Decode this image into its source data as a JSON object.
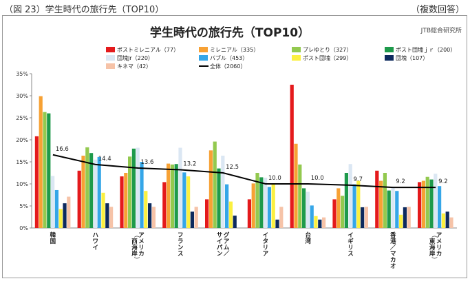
{
  "header": {
    "caption": "（図 23）学生時代の旅行先（TOP10）",
    "note": "（複数回答）"
  },
  "chart_data": {
    "type": "bar",
    "title": "学生時代の旅行先（TOP10）",
    "source": "JTB総合研究所",
    "xlabel": "",
    "ylabel": "",
    "ylim": [
      0,
      35
    ],
    "yticks": [
      "0%",
      "5%",
      "10%",
      "15%",
      "20%",
      "25%",
      "30%",
      "35%"
    ],
    "grid": false,
    "legend_position": "top",
    "categories": [
      [
        "韓国"
      ],
      [
        "ハワイ"
      ],
      [
        "アメリカ",
        "（西海岸）"
      ],
      [
        "フランス"
      ],
      [
        "グアム／",
        "サイパン"
      ],
      [
        "イタリア"
      ],
      [
        "台湾"
      ],
      [
        "イギリス"
      ],
      [
        "香港／マカオ"
      ],
      [
        "アメリカ",
        "（東海岸）"
      ]
    ],
    "series": [
      {
        "name": "ポストミレニアル（77）",
        "color": "#e41a1c",
        "values": [
          20.8,
          13.0,
          11.7,
          10.4,
          6.5,
          6.5,
          32.5,
          6.5,
          13.0,
          10.4
        ]
      },
      {
        "name": "ミレニアル（335）",
        "color": "#f7a134",
        "values": [
          29.9,
          16.4,
          12.5,
          14.6,
          17.6,
          10.1,
          19.1,
          9.0,
          10.7,
          10.7
        ]
      },
      {
        "name": "プレゆとり（327）",
        "color": "#93c94f",
        "values": [
          26.3,
          18.3,
          16.2,
          14.4,
          19.6,
          12.5,
          14.4,
          7.3,
          12.5,
          11.6
        ]
      },
      {
        "name": "ポスト団塊ｊｒ（200）",
        "color": "#1e9a4b",
        "values": [
          26.0,
          17.0,
          18.0,
          14.5,
          13.5,
          11.5,
          9.0,
          12.5,
          8.5,
          11.0
        ]
      },
      {
        "name": "団塊Jr（220）",
        "color": "#dbe7f3",
        "values": [
          11.8,
          15.5,
          18.2,
          18.2,
          16.4,
          11.4,
          8.2,
          14.5,
          9.1,
          12.3
        ]
      },
      {
        "name": "バブル（453）",
        "color": "#35a6e8",
        "values": [
          8.6,
          16.1,
          15.0,
          12.6,
          9.9,
          9.3,
          5.1,
          9.9,
          8.4,
          9.5
        ]
      },
      {
        "name": "ポスト団塊（299）",
        "color": "#fbf040",
        "values": [
          4.3,
          8.0,
          8.4,
          11.7,
          6.0,
          10.0,
          2.7,
          10.7,
          3.0,
          3.3
        ]
      },
      {
        "name": "団塊（107）",
        "color": "#0d2a5e",
        "values": [
          5.6,
          5.6,
          5.6,
          3.7,
          2.8,
          1.9,
          1.9,
          4.7,
          4.7,
          3.7
        ]
      },
      {
        "name": "キネマ（42）",
        "color": "#f6c3a8",
        "values": [
          7.1,
          4.8,
          4.8,
          4.8,
          0,
          4.8,
          2.4,
          4.8,
          4.8,
          2.4
        ]
      }
    ],
    "total_series": {
      "name": "全体（2060）",
      "color": "#000000",
      "values": [
        16.6,
        14.4,
        13.6,
        13.2,
        12.5,
        10.0,
        10.0,
        9.7,
        9.2,
        9.2
      ],
      "labels": [
        "16.6",
        "14.4",
        "13.6",
        "13.2",
        "12.5",
        "10.0",
        "10.0",
        "9.7",
        "9.2",
        "9.2"
      ]
    }
  }
}
